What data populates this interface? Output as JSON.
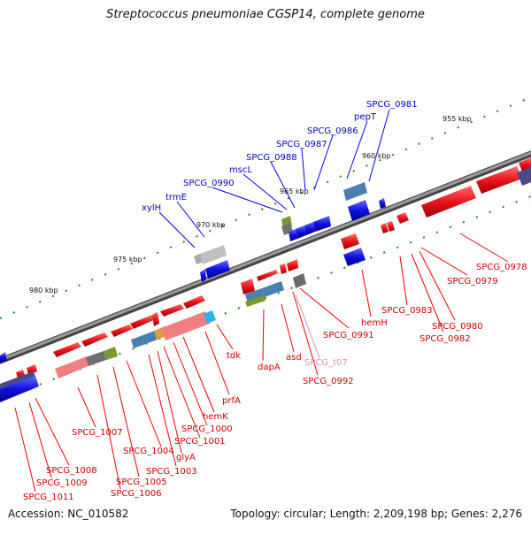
{
  "title": "Streptococcus pneumoniae CGSP14, complete genome",
  "footer": {
    "accession": "Accession: NC_010582",
    "summary": "Topology: circular; Length: 2,209,198 bp; Genes: 2,276"
  },
  "scale_labels": [
    "955 kbp",
    "960 kbp",
    "965 kbp",
    "970 kbp",
    "975 kbp",
    "980 kbp"
  ],
  "gene_labels_upper": [
    "SPCG_0981",
    "pepT",
    "SPCG_0986",
    "SPCG_0987",
    "SPCG_0988",
    "mscL",
    "SPCG_0990",
    "trmE",
    "xylH"
  ],
  "gene_labels_lower": [
    "SPCG_0978",
    "SPCG_0979",
    "SPCG_0980",
    "SPCG_0982",
    "SPCG_0983",
    "hemH",
    "SPCG_0991",
    "SPCG_0992",
    "SPCG_t07",
    "asd",
    "dapA",
    "tdk",
    "prfA",
    "hemK",
    "SPCG_1000",
    "SPCG_1001",
    "glyA",
    "SPCG_1003",
    "SPCG_1004",
    "SPCG_1005",
    "SPCG_1006",
    "SPCG_1007",
    "SPCG_1008",
    "SPCG_1009",
    "SPCG_1011"
  ],
  "colors": {
    "backbone": "#808080",
    "forward_gene": "#e8151b",
    "reverse_gene": "#1010e0",
    "label_red": "#cc0000",
    "label_blue": "#0000bb",
    "trna": "#e08fc0",
    "tick": "#1a8a1a"
  }
}
